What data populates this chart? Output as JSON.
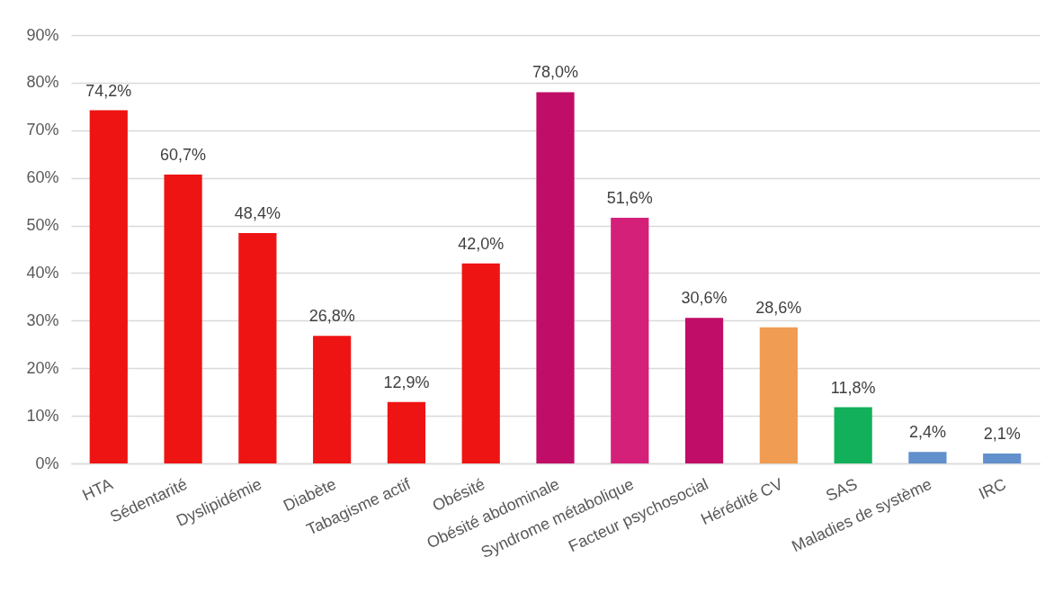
{
  "chart_data": {
    "type": "bar",
    "categories": [
      "HTA",
      "Sédentarité",
      "Dyslipidémie",
      "Diabète",
      "Tabagisme actif",
      "Obésité",
      "Obésité abdominale",
      "Syndrome métabolique",
      "Facteur psychosocial",
      "Hérédité CV",
      "SAS",
      "Maladies de système",
      "IRC"
    ],
    "values": [
      74.2,
      60.7,
      48.4,
      26.8,
      12.9,
      42.0,
      78.0,
      51.6,
      30.6,
      28.6,
      11.8,
      2.4,
      2.1
    ],
    "colors": [
      "#ee1414",
      "#ee1414",
      "#ee1414",
      "#ee1414",
      "#ee1414",
      "#ee1414",
      "#c00d67",
      "#d42079",
      "#c00d67",
      "#f09c53",
      "#12b05a",
      "#6190cc",
      "#6190cc"
    ],
    "value_labels": [
      "74,2%",
      "60,7%",
      "48,4%",
      "26,8%",
      "12,9%",
      "42,0%",
      "78,0%",
      "51,6%",
      "30,6%",
      "28,6%",
      "11,8%",
      "2,4%",
      "2,1%"
    ],
    "ylim": [
      0,
      90
    ],
    "yticks": [
      {
        "value": 0,
        "label": "0%"
      },
      {
        "value": 10,
        "label": "10%"
      },
      {
        "value": 20,
        "label": "20%"
      },
      {
        "value": 30,
        "label": "30%"
      },
      {
        "value": 40,
        "label": "40%"
      },
      {
        "value": 50,
        "label": "50%"
      },
      {
        "value": 60,
        "label": "60%"
      },
      {
        "value": 70,
        "label": "70%"
      },
      {
        "value": 80,
        "label": "80%"
      },
      {
        "value": 90,
        "label": "90%"
      }
    ],
    "grid": "y"
  }
}
